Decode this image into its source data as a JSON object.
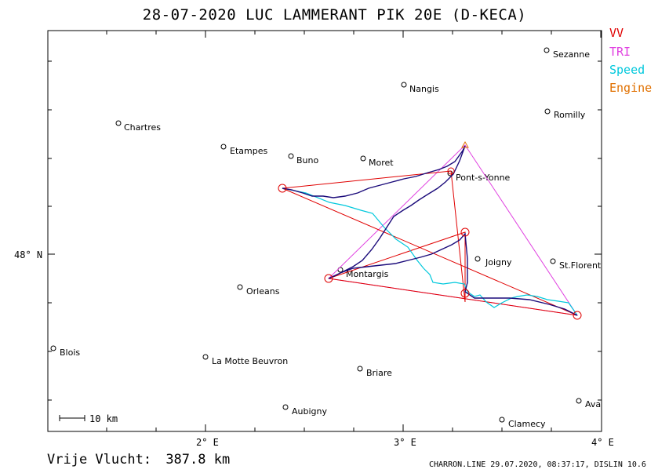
{
  "title": "28-07-2020   LUC LAMMERANT   PIK 20E (D-KECA)",
  "legend": [
    {
      "label": "VV",
      "color": "#e00000"
    },
    {
      "label": "TRI",
      "color": "#e040e0"
    },
    {
      "label": "Speed",
      "color": "#00c8dc"
    },
    {
      "label": "Engine",
      "color": "#e07000"
    }
  ],
  "distance_label": "Vrije Vlucht:",
  "distance_value": "387.8 km",
  "footer": "CHARRON.LINE 29.07.2020, 08:37:17, DISLIN 10.6",
  "scale_label": "10 km",
  "axes": {
    "x_labels": [
      "2° E",
      "3° E",
      "4° E"
    ],
    "y_labels": [
      "48° N"
    ]
  },
  "towns": [
    {
      "name": "Sezanne"
    },
    {
      "name": "Nangis"
    },
    {
      "name": "Romilly"
    },
    {
      "name": "Chartres"
    },
    {
      "name": "Etampes"
    },
    {
      "name": "Buno"
    },
    {
      "name": "Moret"
    },
    {
      "name": "Pont-s-Yonne"
    },
    {
      "name": "Joigny"
    },
    {
      "name": "St.Florent"
    },
    {
      "name": "Montargis"
    },
    {
      "name": "Orleans"
    },
    {
      "name": "Blois"
    },
    {
      "name": "La Motte Beuvron"
    },
    {
      "name": "Briare"
    },
    {
      "name": "Aubigny"
    },
    {
      "name": "Clamecy"
    },
    {
      "name": "Ava"
    }
  ]
}
